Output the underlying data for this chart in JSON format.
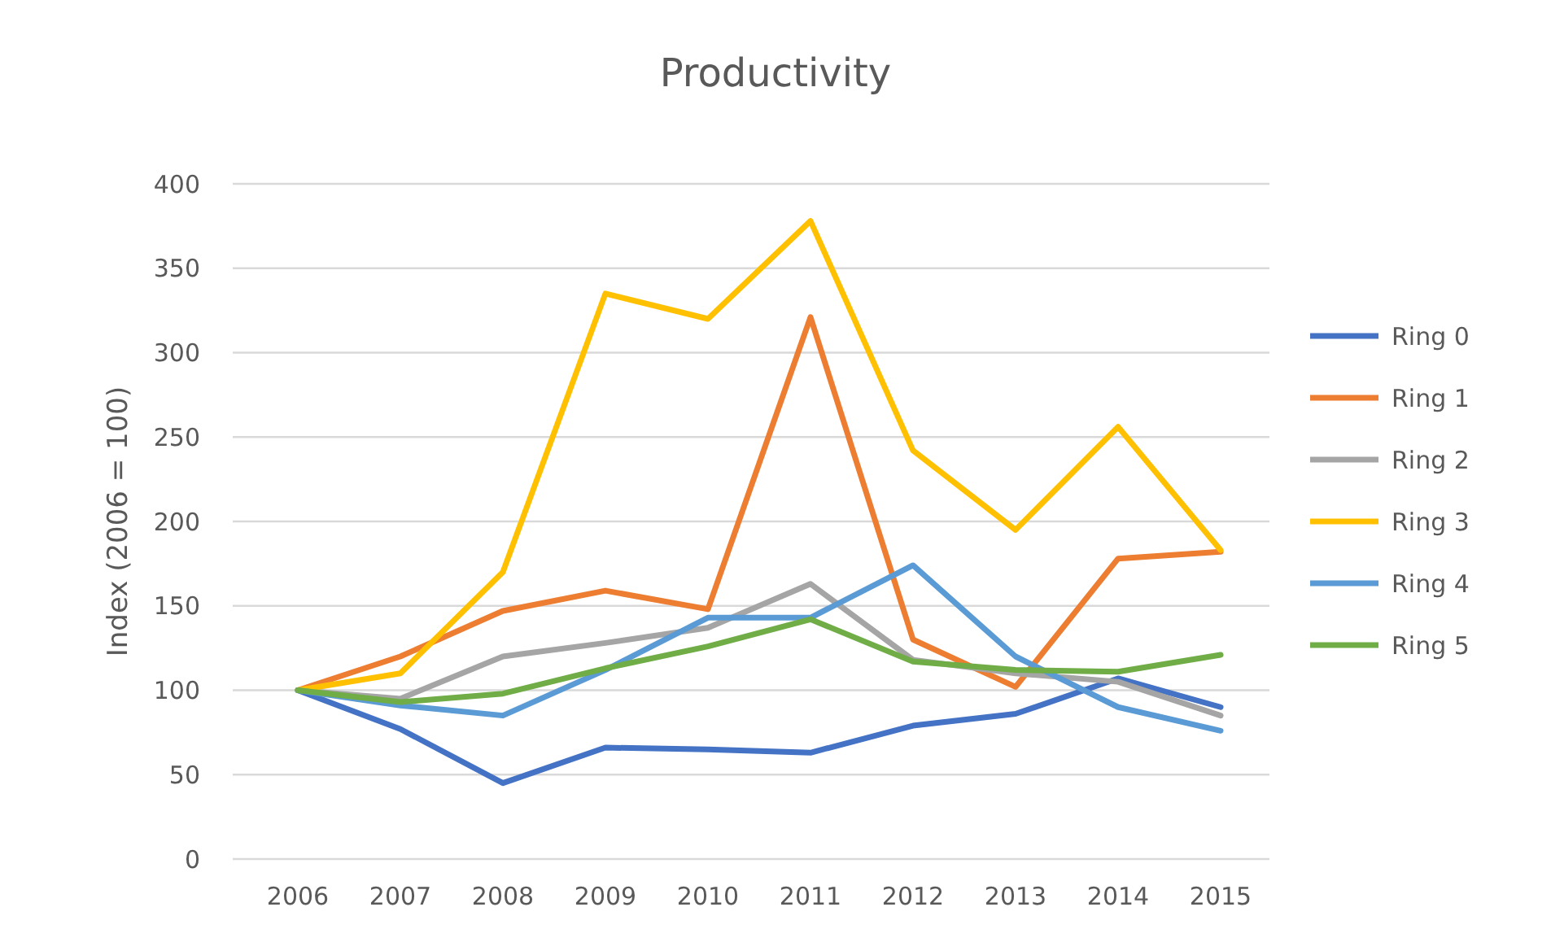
{
  "chart_data": {
    "type": "line",
    "title": "Productivity",
    "ylabel": "Index (2006 = 100)",
    "categories": [
      "2006",
      "2007",
      "2008",
      "2009",
      "2010",
      "2011",
      "2012",
      "2013",
      "2014",
      "2015"
    ],
    "series": [
      {
        "name": "Ring 0",
        "color": "#4472c4",
        "values": [
          100,
          77,
          45,
          66,
          65,
          63,
          79,
          86,
          107,
          90
        ]
      },
      {
        "name": "Ring 1",
        "color": "#ed7d31",
        "values": [
          100,
          120,
          147,
          159,
          148,
          321,
          130,
          102,
          178,
          182
        ]
      },
      {
        "name": "Ring 2",
        "color": "#a5a5a5",
        "values": [
          100,
          95,
          120,
          128,
          137,
          163,
          118,
          110,
          105,
          85
        ]
      },
      {
        "name": "Ring 3",
        "color": "#ffc000",
        "values": [
          100,
          110,
          170,
          335,
          320,
          378,
          242,
          195,
          256,
          183
        ]
      },
      {
        "name": "Ring 4",
        "color": "#5b9bd5",
        "values": [
          100,
          91,
          85,
          112,
          143,
          143,
          174,
          120,
          90,
          76
        ]
      },
      {
        "name": "Ring 5",
        "color": "#70ad47",
        "values": [
          100,
          93,
          98,
          113,
          126,
          142,
          117,
          112,
          111,
          121
        ]
      }
    ],
    "ylim": [
      0,
      400
    ],
    "yticks": [
      0,
      50,
      100,
      150,
      200,
      250,
      300,
      350,
      400
    ],
    "grid": "y",
    "legend": "right"
  }
}
